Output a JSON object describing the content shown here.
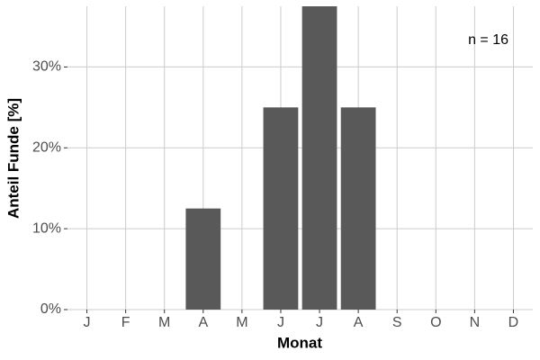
{
  "chart_data": {
    "type": "bar",
    "x_label": "Monat",
    "y_label": "Anteil Funde [%]",
    "annotation": "n = 16",
    "categories": [
      "J",
      "F",
      "M",
      "A",
      "M",
      "J",
      "J",
      "A",
      "S",
      "O",
      "N",
      "D"
    ],
    "values": [
      0,
      0,
      0,
      12.5,
      0,
      25,
      37.5,
      25,
      0,
      0,
      0,
      0
    ],
    "color": "#595959",
    "ylim": [
      0,
      37.5
    ],
    "yticks": [
      {
        "value": 0,
        "label": "0%"
      },
      {
        "value": 10,
        "label": "10%"
      },
      {
        "value": 20,
        "label": "20%"
      },
      {
        "value": 30,
        "label": "30%"
      }
    ],
    "grid": true
  }
}
